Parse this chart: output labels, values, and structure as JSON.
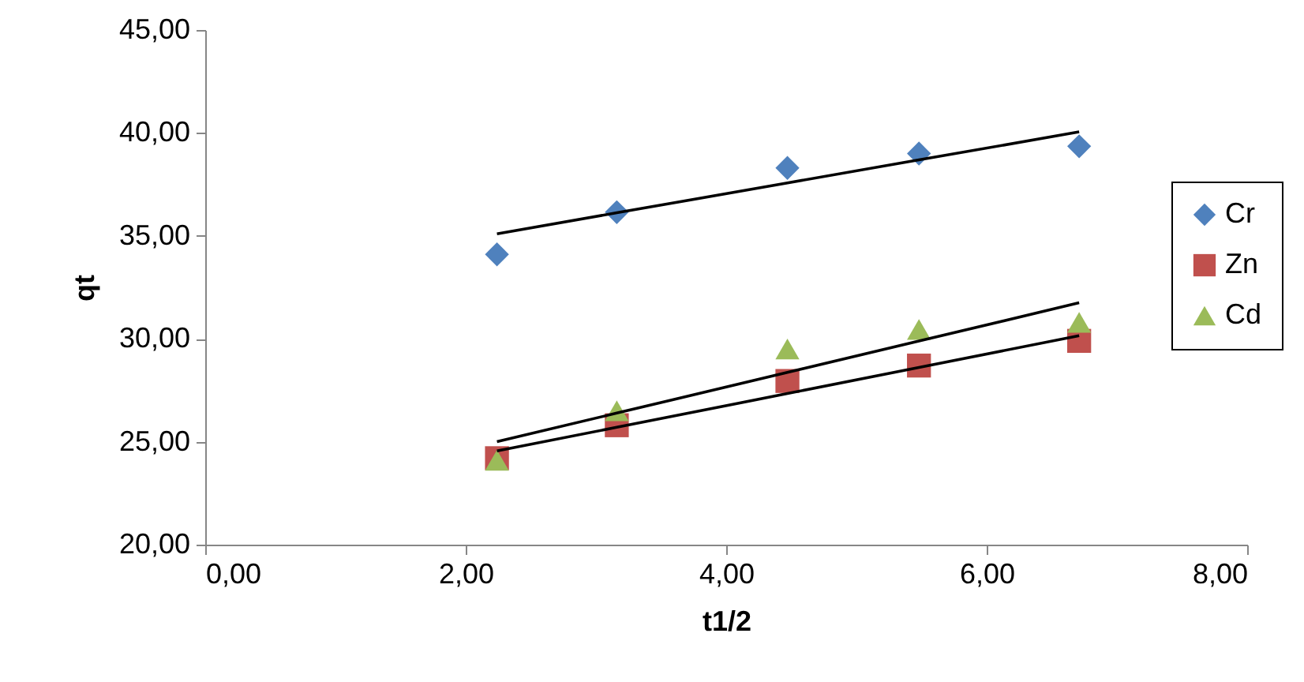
{
  "chart_data": {
    "type": "scatter",
    "xlabel": "t1/2",
    "ylabel": "qt",
    "xlim": [
      0,
      8
    ],
    "xticks": [
      {
        "value": 0,
        "label": "0,00"
      },
      {
        "value": 2,
        "label": "2,00"
      },
      {
        "value": 4,
        "label": "4,00"
      },
      {
        "value": 6,
        "label": "6,00"
      },
      {
        "value": 8,
        "label": "8,00"
      }
    ],
    "ylim": [
      20,
      45
    ],
    "yticks": [
      {
        "value": 20,
        "label": "20,00"
      },
      {
        "value": 25,
        "label": "25,00"
      },
      {
        "value": 30,
        "label": "30,00"
      },
      {
        "value": 35,
        "label": "35,00"
      },
      {
        "value": 40,
        "label": "40,00"
      },
      {
        "value": 45,
        "label": "45,00"
      }
    ],
    "grid": false,
    "legend": "right",
    "x": [
      2.24,
      3.16,
      4.47,
      5.48,
      6.71
    ],
    "series": [
      {
        "name": "Cr",
        "color": "#4f81bd",
        "marker": "diamond",
        "values": [
          34.1,
          36.15,
          38.3,
          39.0,
          39.35
        ]
      },
      {
        "name": "Zn",
        "color": "#c0504d",
        "marker": "square",
        "values": [
          24.2,
          25.8,
          27.95,
          28.7,
          29.9
        ]
      },
      {
        "name": "Cd",
        "color": "#9bbb59",
        "marker": "triangle",
        "values": [
          24.1,
          26.5,
          29.5,
          30.45,
          30.8
        ]
      },
      {
        "type": "line",
        "color": "#000000",
        "values": [
          35.1,
          36.12,
          37.57,
          38.69,
          40.05
        ]
      },
      {
        "type": "line",
        "color": "#000000",
        "values": [
          24.55,
          25.7,
          27.34,
          28.61,
          30.15
        ]
      },
      {
        "type": "line",
        "color": "#000000",
        "values": [
          25.0,
          26.39,
          28.37,
          29.89,
          31.75
        ]
      }
    ]
  }
}
